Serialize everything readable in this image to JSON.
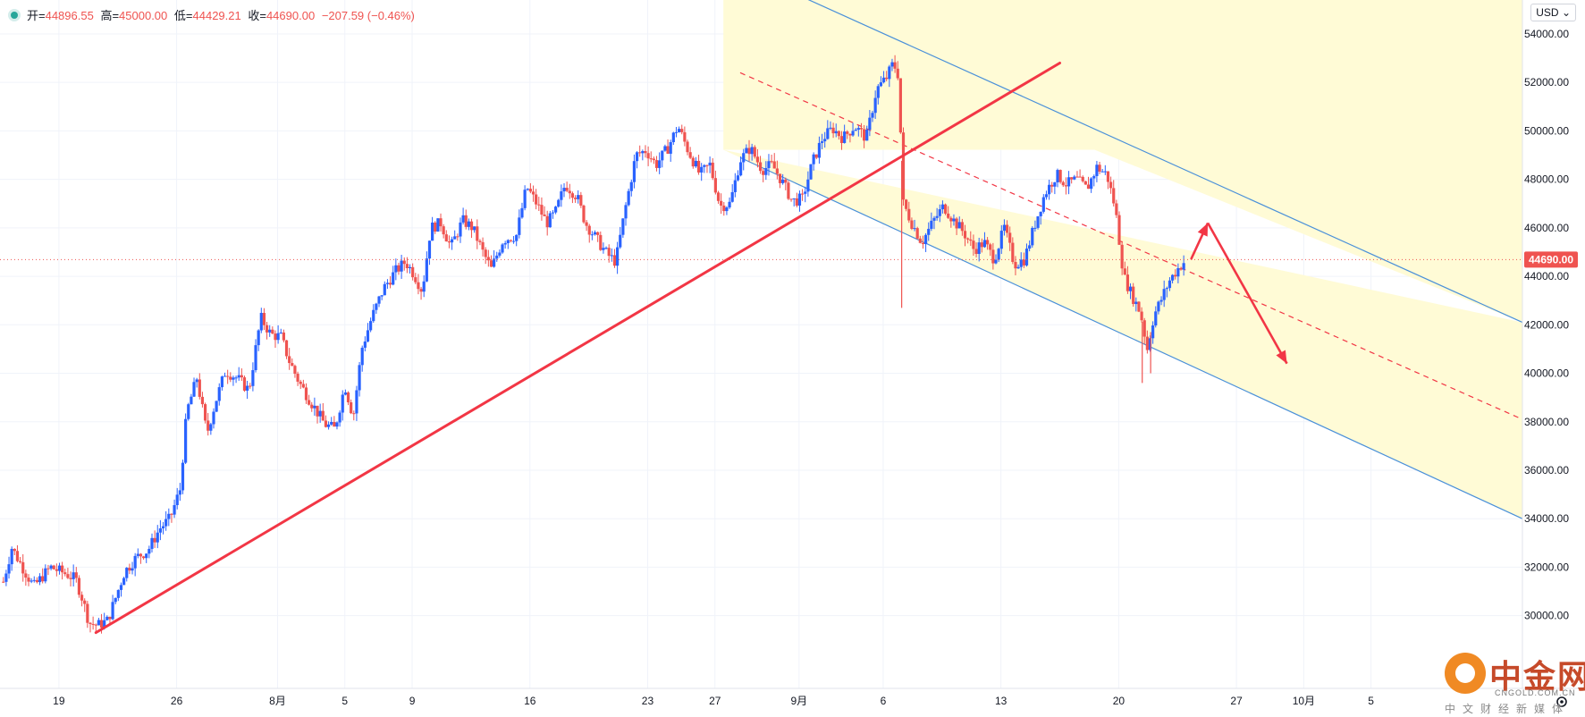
{
  "legend": {
    "open_label": "开=",
    "open": "44896.55",
    "high_label": "高=",
    "high": "45000.00",
    "low_label": "低=",
    "low": "44429.21",
    "close_label": "收=",
    "close": "44690.00",
    "change": "−207.59 (−0.46%)"
  },
  "currency_button": "USD",
  "watermark": {
    "name": "中金网",
    "domain": "CNGOLD.COM.CN",
    "tagline": "中文财经新媒体"
  },
  "colors": {
    "up": "#2962ff",
    "down": "#ef5350",
    "annotation": "#f23645",
    "channel": "#4a90d9",
    "channel_fill": "#fffbd6"
  },
  "chart_data": {
    "type": "candlestick",
    "symbol_quote_currency": "USD",
    "last_price": 44690.0,
    "last_price_label": "44690.00",
    "ylim": [
      27000,
      55400
    ],
    "y_ticks": [
      30000,
      32000,
      34000,
      36000,
      38000,
      40000,
      42000,
      44000,
      46000,
      48000,
      50000,
      52000,
      54000
    ],
    "y_tick_labels": [
      "30000.00",
      "32000.00",
      "34000.00",
      "36000.00",
      "38000.00",
      "40000.00",
      "42000.00",
      "44000.00",
      "46000.00",
      "48000.00",
      "50000.00",
      "52000.00",
      "54000.00"
    ],
    "x_range_days": [
      -3.5,
      87
    ],
    "x_ticks": [
      {
        "day": 0,
        "label": "19"
      },
      {
        "day": 7,
        "label": "26"
      },
      {
        "day": 13,
        "label": "8月"
      },
      {
        "day": 17,
        "label": "5"
      },
      {
        "day": 21,
        "label": "9"
      },
      {
        "day": 28,
        "label": "16"
      },
      {
        "day": 35,
        "label": "23"
      },
      {
        "day": 39,
        "label": "27"
      },
      {
        "day": 44,
        "label": "9月"
      },
      {
        "day": 49,
        "label": "6"
      },
      {
        "day": 56,
        "label": "13"
      },
      {
        "day": 63,
        "label": "20"
      },
      {
        "day": 70,
        "label": "27"
      },
      {
        "day": 74,
        "label": "10月"
      },
      {
        "day": 78,
        "label": "5"
      }
    ],
    "price_path": [
      [
        -3.3,
        31400
      ],
      [
        -2.8,
        32800
      ],
      [
        -2.0,
        31800
      ],
      [
        -1.5,
        31200
      ],
      [
        -0.5,
        32000
      ],
      [
        0.5,
        31700
      ],
      [
        1.0,
        31500
      ],
      [
        1.4,
        30700
      ],
      [
        1.8,
        29700
      ],
      [
        2.3,
        29600
      ],
      [
        2.9,
        29800
      ],
      [
        3.4,
        30800
      ],
      [
        3.9,
        31800
      ],
      [
        4.6,
        32400
      ],
      [
        5.3,
        32700
      ],
      [
        6.0,
        33600
      ],
      [
        6.6,
        34000
      ],
      [
        7.2,
        35200
      ],
      [
        7.6,
        38400
      ],
      [
        8.2,
        39800
      ],
      [
        8.8,
        37500
      ],
      [
        9.3,
        38800
      ],
      [
        9.9,
        40100
      ],
      [
        10.6,
        39800
      ],
      [
        11.3,
        39300
      ],
      [
        12.0,
        42300
      ],
      [
        12.6,
        41600
      ],
      [
        13.2,
        41500
      ],
      [
        13.7,
        40500
      ],
      [
        14.3,
        39600
      ],
      [
        15.0,
        38800
      ],
      [
        15.8,
        37900
      ],
      [
        16.4,
        37700
      ],
      [
        17.0,
        39500
      ],
      [
        17.5,
        38200
      ],
      [
        18.0,
        41000
      ],
      [
        18.6,
        42300
      ],
      [
        19.3,
        43500
      ],
      [
        20.0,
        44200
      ],
      [
        20.6,
        44600
      ],
      [
        21.1,
        44100
      ],
      [
        21.6,
        43400
      ],
      [
        22.1,
        46000
      ],
      [
        22.7,
        46200
      ],
      [
        23.3,
        45200
      ],
      [
        24.0,
        46300
      ],
      [
        24.6,
        46000
      ],
      [
        25.2,
        45000
      ],
      [
        25.7,
        44300
      ],
      [
        26.4,
        45500
      ],
      [
        27.2,
        45700
      ],
      [
        27.8,
        47700
      ],
      [
        28.4,
        47000
      ],
      [
        29.0,
        46200
      ],
      [
        29.5,
        46600
      ],
      [
        30.1,
        47800
      ],
      [
        30.8,
        47300
      ],
      [
        31.3,
        46200
      ],
      [
        32.0,
        45500
      ],
      [
        32.6,
        44900
      ],
      [
        33.1,
        44600
      ],
      [
        33.7,
        46900
      ],
      [
        34.3,
        49000
      ],
      [
        34.9,
        49200
      ],
      [
        35.5,
        48600
      ],
      [
        36.2,
        49300
      ],
      [
        36.8,
        50200
      ],
      [
        37.4,
        49200
      ],
      [
        38.1,
        48200
      ],
      [
        38.7,
        48600
      ],
      [
        39.3,
        46900
      ],
      [
        39.9,
        47000
      ],
      [
        40.5,
        48800
      ],
      [
        41.1,
        49300
      ],
      [
        41.8,
        48400
      ],
      [
        42.4,
        48600
      ],
      [
        43.0,
        47900
      ],
      [
        43.6,
        47100
      ],
      [
        44.2,
        47200
      ],
      [
        44.8,
        48700
      ],
      [
        45.4,
        49700
      ],
      [
        46.0,
        50100
      ],
      [
        46.6,
        49700
      ],
      [
        47.3,
        50200
      ],
      [
        48.0,
        49700
      ],
      [
        48.6,
        51700
      ],
      [
        49.2,
        52200
      ],
      [
        49.6,
        52800
      ],
      [
        49.9,
        52300
      ],
      [
        50.2,
        47000
      ],
      [
        50.7,
        46200
      ],
      [
        51.3,
        45400
      ],
      [
        52.0,
        46300
      ],
      [
        52.6,
        46900
      ],
      [
        53.2,
        46300
      ],
      [
        53.8,
        45800
      ],
      [
        54.4,
        45100
      ],
      [
        55.0,
        45400
      ],
      [
        55.6,
        44700
      ],
      [
        56.2,
        46000
      ],
      [
        56.8,
        44500
      ],
      [
        57.4,
        44700
      ],
      [
        58.0,
        46100
      ],
      [
        58.6,
        47400
      ],
      [
        59.3,
        48200
      ],
      [
        59.9,
        47800
      ],
      [
        60.5,
        48000
      ],
      [
        61.1,
        47600
      ],
      [
        61.7,
        48500
      ],
      [
        62.3,
        48200
      ],
      [
        62.8,
        46800
      ],
      [
        63.3,
        44000
      ],
      [
        63.8,
        43200
      ],
      [
        64.3,
        42500
      ],
      [
        64.7,
        41000
      ],
      [
        65.1,
        42400
      ],
      [
        65.5,
        43000
      ],
      [
        66.0,
        43800
      ],
      [
        66.5,
        44300
      ],
      [
        67.0,
        44690
      ]
    ],
    "spike_wicks": [
      {
        "day": 50.1,
        "low": 42700
      },
      {
        "day": 64.4,
        "low": 39600
      },
      {
        "day": 64.9,
        "low": 40000
      }
    ],
    "annotations": {
      "trendline": {
        "from": [
          2.2,
          29300
        ],
        "to": [
          59.5,
          52800
        ]
      },
      "channel_upper": {
        "from": [
          39.5,
          57000
        ],
        "to": [
          87,
          42100
        ]
      },
      "channel_lower": {
        "from": [
          40.5,
          48900
        ],
        "to": [
          87,
          34000
        ]
      },
      "channel_mid": {
        "from": [
          40.5,
          52400
        ],
        "to": [
          87,
          38100
        ]
      },
      "channel_box_x": [
        39.5,
        87
      ],
      "arrows": [
        {
          "from": [
            67.3,
            44700
          ],
          "to": [
            68.3,
            46200
          ]
        },
        {
          "from": [
            68.3,
            46200
          ],
          "to": [
            73.0,
            40400
          ]
        }
      ]
    }
  }
}
